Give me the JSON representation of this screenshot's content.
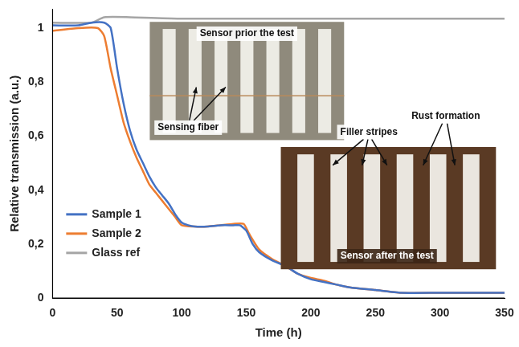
{
  "chart_data": {
    "type": "line",
    "x_label": "Time (h)",
    "y_label": "Relative transmission (a.u.)",
    "xlim": [
      0,
      350
    ],
    "xticks": [
      0,
      50,
      100,
      150,
      200,
      250,
      300,
      350
    ],
    "ylim": [
      0,
      1.07
    ],
    "yticks": [
      0,
      {
        "value": 0.2,
        "label": "0,2"
      },
      {
        "value": 0.4,
        "label": "0,4"
      },
      {
        "value": 0.6,
        "label": "0,6"
      },
      {
        "value": 0.8,
        "label": "0,8"
      },
      1
    ],
    "grid": false,
    "legend": "lower left",
    "series": [
      {
        "name": "Sample 1",
        "color": "#4472c4",
        "x": [
          0,
          20,
          30,
          40,
          45,
          50,
          55,
          60,
          65,
          70,
          75,
          80,
          85,
          90,
          95,
          100,
          105,
          110,
          120,
          130,
          140,
          145,
          150,
          155,
          160,
          170,
          180,
          190,
          200,
          210,
          220,
          230,
          250,
          270,
          300,
          350
        ],
        "values": [
          1.01,
          1.01,
          1.02,
          1.02,
          1.0,
          0.85,
          0.72,
          0.62,
          0.55,
          0.5,
          0.45,
          0.41,
          0.38,
          0.35,
          0.31,
          0.28,
          0.27,
          0.265,
          0.265,
          0.27,
          0.27,
          0.27,
          0.25,
          0.2,
          0.17,
          0.14,
          0.12,
          0.09,
          0.07,
          0.06,
          0.05,
          0.04,
          0.03,
          0.02,
          0.02,
          0.02
        ]
      },
      {
        "name": "Sample 2",
        "color": "#ed7d31",
        "x": [
          0,
          20,
          35,
          40,
          45,
          50,
          55,
          60,
          65,
          70,
          75,
          80,
          85,
          90,
          95,
          100,
          110,
          120,
          130,
          140,
          148,
          152,
          160,
          170,
          180,
          190,
          200,
          210,
          220,
          230,
          250,
          270,
          300,
          350
        ],
        "values": [
          0.99,
          1.0,
          1.0,
          0.97,
          0.85,
          0.75,
          0.65,
          0.58,
          0.52,
          0.47,
          0.42,
          0.39,
          0.36,
          0.33,
          0.3,
          0.27,
          0.265,
          0.265,
          0.27,
          0.275,
          0.275,
          0.24,
          0.18,
          0.145,
          0.12,
          0.09,
          0.075,
          0.065,
          0.05,
          0.04,
          0.03,
          0.02,
          0.02,
          0.02
        ]
      },
      {
        "name": "Glass ref",
        "color": "#a5a5a5",
        "x": [
          0,
          30,
          40,
          60,
          100,
          200,
          300,
          350
        ],
        "values": [
          1.02,
          1.02,
          1.04,
          1.04,
          1.035,
          1.035,
          1.035,
          1.035
        ]
      }
    ],
    "annotations": [
      {
        "text": "Sensor prior the test"
      },
      {
        "text": "Sensing fiber"
      },
      {
        "text": "Filler stripes"
      },
      {
        "text": "Rust formation"
      },
      {
        "text": "Sensor after the test"
      }
    ]
  }
}
